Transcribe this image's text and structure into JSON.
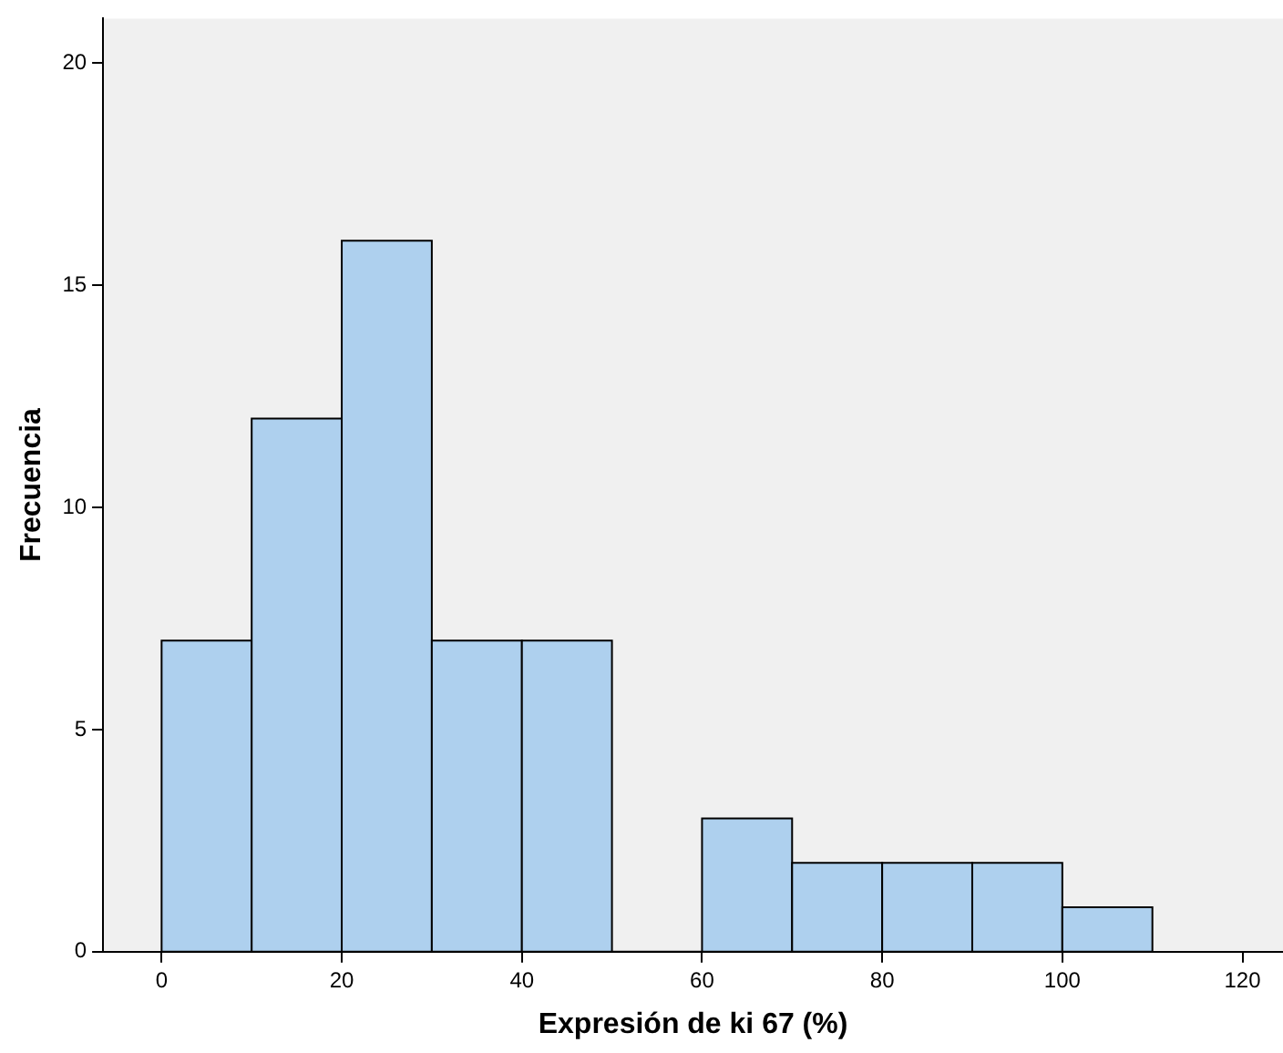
{
  "chart_data": {
    "type": "histogram",
    "xlabel": "Expresión de ki 67 (%)",
    "ylabel": "Frecuencia",
    "bins": [
      0,
      10,
      20,
      30,
      40,
      50,
      60,
      70,
      80,
      90,
      100,
      110
    ],
    "values": [
      7,
      12,
      16,
      7,
      7,
      0,
      3,
      2,
      2,
      2,
      1
    ],
    "color": "#aed0ee",
    "xlim": [
      -6.5,
      124.5
    ],
    "xticks": [
      0,
      20,
      40,
      60,
      80,
      100,
      120
    ],
    "ylim": [
      0,
      21
    ],
    "yticks": [
      0,
      5,
      10,
      15,
      20
    ],
    "grid": false,
    "legend": false
  }
}
